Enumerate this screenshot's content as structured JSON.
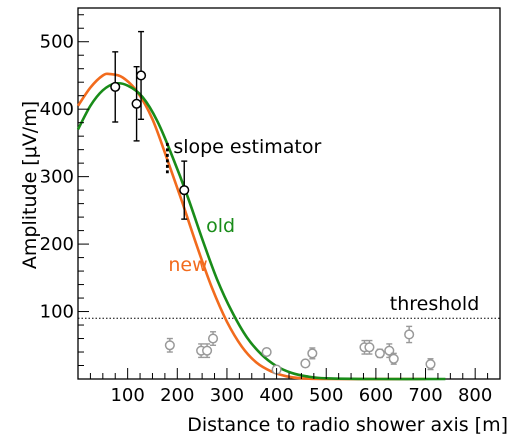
{
  "chart_data": {
    "type": "scatter",
    "title": "",
    "xlabel": "Distance to radio shower axis [m]",
    "ylabel": "Amplitude [μV/m]",
    "xlim": [
      0,
      850
    ],
    "ylim": [
      0,
      550
    ],
    "x_ticks": [
      100,
      200,
      300,
      400,
      500,
      600,
      700,
      800
    ],
    "y_ticks": [
      100,
      200,
      300,
      400,
      500
    ],
    "x_tick_labels": [
      "100",
      "200",
      "300",
      "400",
      "500",
      "600",
      "700",
      "800"
    ],
    "y_tick_labels": [
      "100",
      "200",
      "300",
      "400",
      "500"
    ],
    "grid": false,
    "threshold": {
      "label": "threshold",
      "value": 90
    },
    "series": [
      {
        "kind": "points-above-threshold",
        "color": "#000000",
        "points": [
          {
            "x": 75,
            "y": 433,
            "err": 52
          },
          {
            "x": 118,
            "y": 408,
            "err": 55
          },
          {
            "x": 127,
            "y": 450,
            "err": 65
          },
          {
            "x": 214,
            "y": 280,
            "err": 43
          }
        ]
      },
      {
        "kind": "points-below-threshold",
        "color": "#999999",
        "points": [
          {
            "x": 185,
            "y": 50,
            "err": 10
          },
          {
            "x": 248,
            "y": 42,
            "err": 10
          },
          {
            "x": 260,
            "y": 42,
            "err": 10
          },
          {
            "x": 272,
            "y": 60,
            "err": 10
          },
          {
            "x": 380,
            "y": 40,
            "err": 5
          },
          {
            "x": 400,
            "y": 14,
            "err": 5
          },
          {
            "x": 458,
            "y": 23,
            "err": 5
          },
          {
            "x": 472,
            "y": 38,
            "err": 8
          },
          {
            "x": 577,
            "y": 47,
            "err": 10
          },
          {
            "x": 587,
            "y": 47,
            "err": 10
          },
          {
            "x": 608,
            "y": 38,
            "err": 6
          },
          {
            "x": 627,
            "y": 42,
            "err": 10
          },
          {
            "x": 636,
            "y": 30,
            "err": 8
          },
          {
            "x": 667,
            "y": 66,
            "err": 12
          },
          {
            "x": 710,
            "y": 22,
            "err": 8
          }
        ]
      }
    ],
    "curves": [
      {
        "name": "new",
        "color": "#f26b1d",
        "points": [
          [
            0,
            405
          ],
          [
            25,
            432
          ],
          [
            50,
            450
          ],
          [
            65,
            452
          ],
          [
            90,
            447
          ],
          [
            120,
            425
          ],
          [
            150,
            385
          ],
          [
            180,
            325
          ],
          [
            210,
            262
          ],
          [
            240,
            196
          ],
          [
            270,
            135
          ],
          [
            300,
            85
          ],
          [
            330,
            48
          ],
          [
            360,
            24
          ],
          [
            390,
            11
          ],
          [
            420,
            4
          ],
          [
            450,
            1
          ],
          [
            500,
            0
          ],
          [
            700,
            0
          ]
        ]
      },
      {
        "name": "old",
        "color": "#198c19",
        "points": [
          [
            0,
            370
          ],
          [
            25,
            405
          ],
          [
            50,
            428
          ],
          [
            75,
            438
          ],
          [
            100,
            435
          ],
          [
            130,
            418
          ],
          [
            160,
            382
          ],
          [
            190,
            330
          ],
          [
            220,
            272
          ],
          [
            250,
            208
          ],
          [
            280,
            148
          ],
          [
            310,
            100
          ],
          [
            340,
            62
          ],
          [
            370,
            36
          ],
          [
            400,
            19
          ],
          [
            430,
            9
          ],
          [
            460,
            4
          ],
          [
            500,
            1
          ],
          [
            600,
            0
          ],
          [
            740,
            0
          ]
        ]
      }
    ],
    "slope_estimator": {
      "label": "slope estimator",
      "x": 180,
      "y_range": [
        305,
        350
      ]
    },
    "annotations": [
      {
        "text": "slope estimator",
        "color": "#000000",
        "x": 192,
        "y": 335
      },
      {
        "text": "old",
        "color": "#198c19",
        "x": 258,
        "y": 218
      },
      {
        "text": "new",
        "color": "#f26b1d",
        "x": 182,
        "y": 160
      },
      {
        "text": "threshold",
        "color": "#000000",
        "x": 628,
        "y": 102
      }
    ]
  }
}
